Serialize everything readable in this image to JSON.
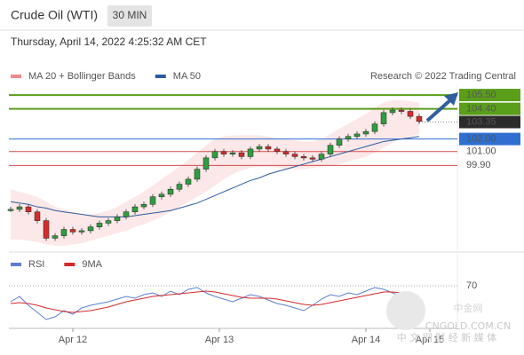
{
  "header": {
    "title": "Crude Oil (WTI)",
    "timeframe": "30 MIN",
    "datetime": "Thursday, April 14, 2022 4:25:32 AM CET",
    "credit": "Research © 2022 Trading Central"
  },
  "watermark": {
    "logo": "中金网",
    "site": "CNGOLD.COM.CN",
    "tagline": "中 文 网 财 经 新 媒 体"
  },
  "chart_data": [
    {
      "type": "price",
      "xlim": [
        0,
        47
      ],
      "ylim": [
        93,
        106
      ],
      "xticks": [
        {
          "value": 7,
          "label": "Apr 12"
        },
        {
          "value": 23.5,
          "label": "Apr 13"
        },
        {
          "value": 40,
          "label": "Apr 14"
        },
        {
          "value": 47.2,
          "label": "Apr 15"
        }
      ],
      "series": [
        {
          "name": "MA 20 + Bollinger Bands",
          "color": "#f08a8a",
          "upper": [
            98.0,
            97.8,
            97.6,
            97.4,
            97.0,
            96.6,
            96.4,
            96.2,
            96.0,
            96.0,
            96.1,
            96.3,
            96.6,
            97.0,
            97.4,
            97.8,
            98.3,
            98.8,
            99.3,
            99.8,
            100.3,
            100.9,
            101.5,
            102.0,
            102.2,
            102.3,
            102.3,
            102.3,
            102.3,
            102.2,
            102.1,
            102.0,
            101.9,
            101.8,
            101.8,
            102.0,
            102.4,
            102.8,
            103.2,
            103.6,
            104.0,
            104.5,
            104.9,
            105.1,
            105.1,
            105.0,
            104.9
          ],
          "lower": [
            94.0,
            94.0,
            93.9,
            93.8,
            93.6,
            93.5,
            93.5,
            93.6,
            93.7,
            93.9,
            94.1,
            94.3,
            94.5,
            94.7,
            95.0,
            95.2,
            95.5,
            95.8,
            96.2,
            96.6,
            97.0,
            97.4,
            97.8,
            98.3,
            98.8,
            99.2,
            99.5,
            99.7,
            99.8,
            99.8,
            99.7,
            99.6,
            99.6,
            99.6,
            99.7,
            99.8,
            99.9,
            100.0,
            100.2,
            100.4,
            100.6,
            100.9,
            101.3,
            101.7,
            102.0,
            102.2,
            102.4
          ]
        },
        {
          "name": "MA 50",
          "color": "#2c5aa0",
          "values": [
            97.0,
            96.9,
            96.8,
            96.6,
            96.5,
            96.3,
            96.2,
            96.1,
            96.0,
            95.9,
            95.8,
            95.8,
            95.8,
            95.8,
            95.9,
            96.0,
            96.1,
            96.2,
            96.3,
            96.5,
            96.7,
            96.9,
            97.2,
            97.5,
            97.8,
            98.1,
            98.4,
            98.7,
            98.9,
            99.2,
            99.4,
            99.6,
            99.8,
            100.0,
            100.2,
            100.4,
            100.6,
            100.8,
            101.0,
            101.2,
            101.4,
            101.6,
            101.8,
            101.9,
            102.0,
            102.1,
            102.2
          ]
        }
      ],
      "price": [
        96.4,
        96.6,
        96.2,
        95.5,
        94.1,
        94.3,
        94.8,
        94.6,
        94.7,
        95.0,
        95.3,
        95.5,
        95.8,
        96.2,
        96.6,
        96.8,
        97.4,
        97.6,
        98.0,
        98.4,
        98.8,
        99.6,
        100.5,
        101.0,
        100.8,
        100.9,
        100.6,
        101.2,
        101.4,
        101.2,
        101.0,
        100.8,
        100.6,
        100.5,
        100.4,
        100.8,
        101.5,
        102.0,
        102.2,
        102.4,
        102.6,
        103.2,
        104.1,
        104.3,
        104.2,
        103.8,
        103.4
      ],
      "up_color": "#2e9e3e",
      "down_color": "#d62b2b",
      "levels": [
        {
          "value": 105.5,
          "label": "105.50",
          "color": "#5a9e1a",
          "style": "box"
        },
        {
          "value": 104.4,
          "label": "104.40",
          "color": "#5a9e1a",
          "style": "box"
        },
        {
          "value": 103.35,
          "label": "103.35",
          "color": "#2b2b2b",
          "style": "current"
        },
        {
          "value": 102,
          "label": "102.00",
          "color": "#2f6fd0",
          "style": "box"
        },
        {
          "value": 101,
          "label": "101.00",
          "color": "#d94a4a",
          "style": "text"
        },
        {
          "value": 99.9,
          "label": "99.90",
          "color": "#d94a4a",
          "style": "text"
        }
      ]
    },
    {
      "type": "rsi",
      "xlim": [
        0,
        47
      ],
      "ylim": [
        22,
        92
      ],
      "yticks": [
        70
      ],
      "series": [
        {
          "name": "RSI",
          "color": "#5b7fd6",
          "values": [
            52,
            58,
            48,
            40,
            32,
            35,
            42,
            38,
            45,
            48,
            50,
            52,
            55,
            58,
            56,
            60,
            62,
            58,
            64,
            60,
            66,
            68,
            62,
            58,
            55,
            52,
            56,
            60,
            58,
            54,
            50,
            48,
            45,
            42,
            48,
            55,
            60,
            58,
            62,
            60,
            64,
            68,
            66,
            62,
            58,
            55,
            50
          ]
        },
        {
          "name": "9MA",
          "color": "#d42a2a",
          "values": [
            50,
            51,
            50,
            48,
            45,
            43,
            41,
            40,
            41,
            42,
            44,
            46,
            49,
            52,
            54,
            56,
            58,
            59,
            60,
            61,
            62,
            63,
            64,
            63,
            61,
            59,
            57,
            56,
            56,
            56,
            55,
            53,
            51,
            49,
            48,
            49,
            51,
            53,
            55,
            57,
            59,
            61,
            63,
            63,
            62,
            60,
            57
          ]
        }
      ]
    }
  ]
}
